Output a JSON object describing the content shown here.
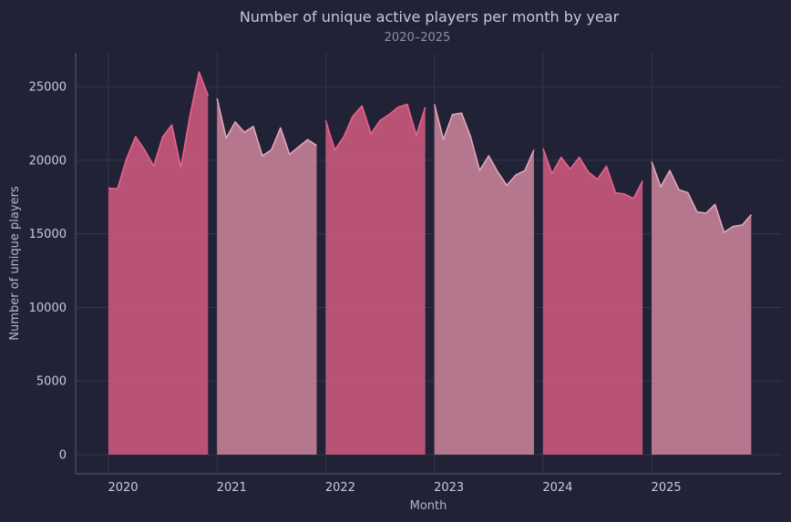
{
  "chart_data": {
    "type": "area",
    "title": "Number of unique active players per month by year",
    "subtitle": "2020–2025",
    "xlabel": "Month",
    "ylabel": "Number of unique players",
    "ylim": [
      -1300,
      27300
    ],
    "y_ticks": [
      0,
      5000,
      10000,
      15000,
      20000,
      25000
    ],
    "y_tick_labels": [
      "0",
      "5000",
      "10000",
      "15000",
      "20000",
      "25000"
    ],
    "x_tick_labels": [
      "2020",
      "2021",
      "2022",
      "2023",
      "2024",
      "2025"
    ],
    "grid": true,
    "colors": {
      "background": "#222236",
      "odd_year_fill": "#c4577b",
      "even_year_fill": "#c17e94",
      "odd_year_line": "#e8638f",
      "even_year_line": "#e3a5b8"
    },
    "series": [
      {
        "name": "2020",
        "x": [
          "2020-01",
          "2020-02",
          "2020-03",
          "2020-04",
          "2020-05",
          "2020-06",
          "2020-07",
          "2020-08",
          "2020-09",
          "2020-10",
          "2020-11",
          "2020-12"
        ],
        "values": [
          18100,
          18050,
          20100,
          21600,
          20700,
          19600,
          21600,
          22400,
          19500,
          23000,
          26000,
          24400
        ]
      },
      {
        "name": "2021",
        "x": [
          "2021-01",
          "2021-02",
          "2021-03",
          "2021-04",
          "2021-05",
          "2021-06",
          "2021-07",
          "2021-08",
          "2021-09",
          "2021-10",
          "2021-11",
          "2021-12"
        ],
        "values": [
          24200,
          21500,
          22600,
          21900,
          22300,
          20300,
          20700,
          22200,
          20400,
          20900,
          21400,
          21000
        ]
      },
      {
        "name": "2022",
        "x": [
          "2022-01",
          "2022-02",
          "2022-03",
          "2022-04",
          "2022-05",
          "2022-06",
          "2022-07",
          "2022-08",
          "2022-09",
          "2022-10",
          "2022-11",
          "2022-12"
        ],
        "values": [
          22700,
          20700,
          21600,
          23000,
          23700,
          21800,
          22700,
          23100,
          23600,
          23800,
          21700,
          23600
        ]
      },
      {
        "name": "2023",
        "x": [
          "2023-01",
          "2023-02",
          "2023-03",
          "2023-04",
          "2023-05",
          "2023-06",
          "2023-07",
          "2023-08",
          "2023-09",
          "2023-10",
          "2023-11",
          "2023-12"
        ],
        "values": [
          23800,
          21400,
          23100,
          23200,
          21600,
          19300,
          20300,
          19200,
          18300,
          19000,
          19300,
          20700
        ]
      },
      {
        "name": "2024",
        "x": [
          "2024-01",
          "2024-02",
          "2024-03",
          "2024-04",
          "2024-05",
          "2024-06",
          "2024-07",
          "2024-08",
          "2024-09",
          "2024-10",
          "2024-11",
          "2024-12"
        ],
        "values": [
          20800,
          19100,
          20200,
          19400,
          20200,
          19200,
          18700,
          19600,
          17800,
          17700,
          17400,
          18600
        ]
      },
      {
        "name": "2025",
        "x": [
          "2025-01",
          "2025-02",
          "2025-03",
          "2025-04",
          "2025-05",
          "2025-06",
          "2025-07",
          "2025-08",
          "2025-09",
          "2025-10",
          "2025-11",
          "2025-12"
        ],
        "values": [
          19900,
          18200,
          19300,
          18000,
          17800,
          16500,
          16400,
          17000,
          15100,
          15500,
          15600,
          16300
        ]
      }
    ]
  }
}
